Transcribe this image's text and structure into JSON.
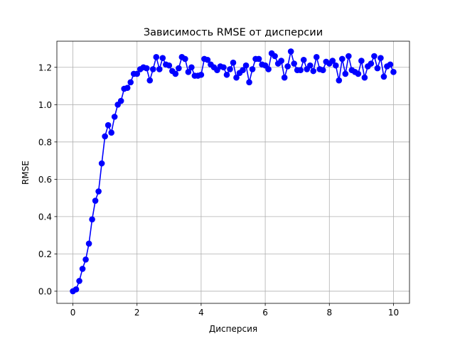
{
  "chart_data": {
    "type": "line",
    "title": "Зависимость RMSE от дисперсии",
    "xlabel": "Дисперсия",
    "ylabel": "RMSE",
    "xlim": [
      -0.5,
      10.5
    ],
    "ylim": [
      -0.065,
      1.34
    ],
    "xticks": [
      0,
      2,
      4,
      6,
      8,
      10
    ],
    "xtick_labels": [
      "0",
      "2",
      "4",
      "6",
      "8",
      "10"
    ],
    "yticks": [
      0.0,
      0.2,
      0.4,
      0.6,
      0.8,
      1.0,
      1.2
    ],
    "ytick_labels": [
      "0.0",
      "0.2",
      "0.4",
      "0.6",
      "0.8",
      "1.0",
      "1.2"
    ],
    "grid": true,
    "color": "#0000ff",
    "series": [
      {
        "name": "",
        "x": [
          0.0,
          0.1,
          0.2,
          0.3,
          0.4,
          0.5,
          0.6,
          0.7,
          0.8,
          0.9,
          1.0,
          1.1,
          1.2,
          1.3,
          1.4,
          1.5,
          1.6,
          1.7,
          1.8,
          1.9,
          2.0,
          2.1,
          2.2,
          2.3,
          2.4,
          2.5,
          2.6,
          2.7,
          2.8,
          2.9,
          3.0,
          3.1,
          3.2,
          3.3,
          3.4,
          3.5,
          3.6,
          3.7,
          3.8,
          3.9,
          4.0,
          4.1,
          4.2,
          4.3,
          4.4,
          4.5,
          4.6,
          4.7,
          4.8,
          4.9,
          5.0,
          5.1,
          5.2,
          5.3,
          5.4,
          5.5,
          5.6,
          5.7,
          5.8,
          5.9,
          6.0,
          6.1,
          6.2,
          6.3,
          6.4,
          6.5,
          6.6,
          6.7,
          6.8,
          6.9,
          7.0,
          7.1,
          7.2,
          7.3,
          7.4,
          7.5,
          7.6,
          7.7,
          7.8,
          7.9,
          8.0,
          8.1,
          8.2,
          8.3,
          8.4,
          8.5,
          8.6,
          8.7,
          8.8,
          8.9,
          9.0,
          9.1,
          9.2,
          9.3,
          9.4,
          9.5,
          9.6,
          9.7,
          9.8,
          9.9,
          10.0
        ],
        "y": [
          0.0,
          0.01,
          0.055,
          0.12,
          0.17,
          0.255,
          0.385,
          0.485,
          0.535,
          0.685,
          0.83,
          0.89,
          0.85,
          0.935,
          1.0,
          1.02,
          1.085,
          1.09,
          1.12,
          1.165,
          1.165,
          1.19,
          1.2,
          1.195,
          1.13,
          1.19,
          1.255,
          1.19,
          1.25,
          1.215,
          1.21,
          1.18,
          1.165,
          1.195,
          1.255,
          1.245,
          1.175,
          1.2,
          1.155,
          1.155,
          1.16,
          1.245,
          1.24,
          1.215,
          1.2,
          1.185,
          1.205,
          1.2,
          1.16,
          1.19,
          1.225,
          1.145,
          1.17,
          1.185,
          1.21,
          1.12,
          1.19,
          1.245,
          1.245,
          1.215,
          1.21,
          1.19,
          1.275,
          1.26,
          1.22,
          1.235,
          1.145,
          1.205,
          1.285,
          1.22,
          1.185,
          1.185,
          1.24,
          1.19,
          1.21,
          1.18,
          1.255,
          1.19,
          1.185,
          1.23,
          1.22,
          1.235,
          1.21,
          1.13,
          1.245,
          1.165,
          1.26,
          1.185,
          1.175,
          1.165,
          1.235,
          1.145,
          1.205,
          1.22,
          1.26,
          1.195,
          1.25,
          1.15,
          1.205,
          1.215,
          1.175
        ]
      }
    ]
  }
}
